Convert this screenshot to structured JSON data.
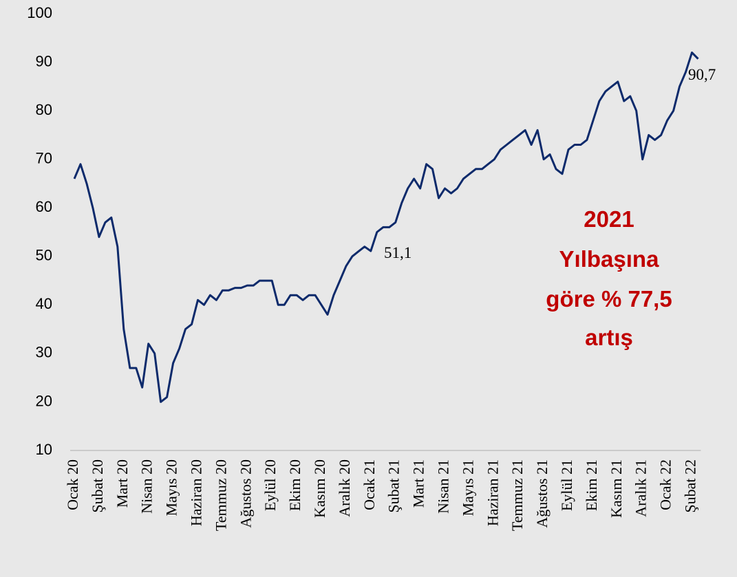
{
  "chart_data": {
    "type": "line",
    "categories": [
      "Ocak 20",
      null,
      null,
      null,
      "Şubat 20",
      null,
      null,
      null,
      "Mart 20",
      null,
      null,
      null,
      "Nisan 20",
      null,
      null,
      null,
      "Mayıs 20",
      null,
      null,
      null,
      "Haziran 20",
      null,
      null,
      null,
      "Temmuz 20",
      null,
      null,
      null,
      "Ağustos 20",
      null,
      null,
      null,
      "Eylül 20",
      null,
      null,
      null,
      "Ekim 20",
      null,
      null,
      null,
      "Kasım 20",
      null,
      null,
      null,
      "Aralık 20",
      null,
      null,
      null,
      "Ocak 21",
      null,
      null,
      null,
      "Şubat 21",
      null,
      null,
      null,
      "Mart 21",
      null,
      null,
      null,
      "Nisan 21",
      null,
      null,
      null,
      "Mayıs 21",
      null,
      null,
      null,
      "Haziran 21",
      null,
      null,
      null,
      "Temmuz 21",
      null,
      null,
      null,
      "Ağustos 21",
      null,
      null,
      null,
      "Eylül 21",
      null,
      null,
      null,
      "Ekim 21",
      null,
      null,
      null,
      "Kasım 21",
      null,
      null,
      null,
      "Aralık 21",
      null,
      null,
      null,
      "Ocak 22",
      null,
      null,
      null,
      "Şubat 22",
      null
    ],
    "series": [
      {
        "color": "#0d2a6b",
        "values": [
          66,
          69,
          65,
          60,
          54,
          57,
          58,
          52,
          35,
          27,
          27,
          23,
          32,
          30,
          20,
          21,
          28,
          31,
          35,
          36,
          41,
          40,
          42,
          41,
          43,
          43,
          43.5,
          43.5,
          44,
          44,
          45,
          45,
          45,
          40,
          40,
          42,
          42,
          41,
          42,
          42,
          40,
          38,
          42,
          45,
          48,
          50,
          51,
          52,
          51.1,
          55,
          56,
          56,
          57,
          61,
          64,
          66,
          64,
          69,
          68,
          62,
          64,
          63,
          64,
          66,
          67,
          68,
          68,
          69,
          70,
          72,
          73,
          74,
          75,
          76,
          73,
          76,
          70,
          71,
          68,
          67,
          72,
          73,
          73,
          74,
          78,
          82,
          84,
          85,
          86,
          82,
          83,
          80,
          70,
          75,
          74,
          75,
          78,
          80,
          85,
          88,
          92,
          90.7
        ]
      }
    ],
    "ylim": [
      10,
      100
    ],
    "yticks": [
      10,
      20,
      30,
      40,
      50,
      60,
      70,
      80,
      90,
      100
    ],
    "annotations": [
      "51,1",
      "90,7"
    ],
    "highlight": [
      "2021",
      "Yılbaşına",
      "göre % 77,5",
      "artış"
    ]
  }
}
